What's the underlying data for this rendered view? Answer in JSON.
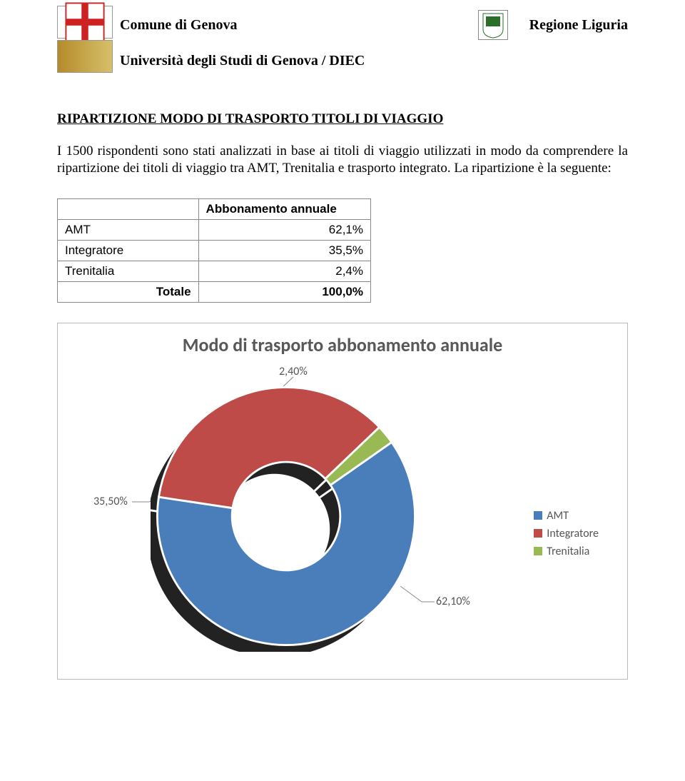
{
  "header": {
    "comune": "Comune di Genova",
    "regione": "Regione Liguria",
    "univ": "Università degli Studi di Genova / DIEC"
  },
  "section_title": "RIPARTIZIONE MODO DI TRASPORTO TITOLI DI VIAGGIO",
  "paragraph": "I 1500 rispondenti sono stati analizzati in base ai titoli di viaggio utilizzati in modo da comprendere la ripartizione dei titoli di viaggio tra AMT, Trenitalia e trasporto integrato. La ripartizione è la seguente:",
  "table": {
    "header": "Abbonamento annuale",
    "rows": [
      {
        "label": "AMT",
        "value": "62,1%"
      },
      {
        "label": "Integratore",
        "value": "35,5%"
      },
      {
        "label": "Trenitalia",
        "value": "2,4%"
      }
    ],
    "total_label": "Totale",
    "total_value": "100,0%"
  },
  "chart": {
    "type": "donut",
    "title": "Modo di trasporto abbonamento annuale",
    "series": [
      {
        "name": "AMT",
        "value": 62.1,
        "label": "62,10%",
        "color": "#4a7ebb"
      },
      {
        "name": "Integratore",
        "value": 35.5,
        "label": "35,50%",
        "color": "#be4b48"
      },
      {
        "name": "Trenitalia",
        "value": 2.4,
        "label": "2,40%",
        "color": "#98b954"
      }
    ],
    "inner_radius_ratio": 0.42,
    "label_fontsize": 16,
    "title_fontsize": 26,
    "title_color": "#585858",
    "label_color": "#555555",
    "background": "#ffffff",
    "border_color": "#bbbbbb",
    "leader_color": "#888888",
    "shadow_color": "#222222",
    "shadow_offset": {
      "dx": -16,
      "dy": 18
    },
    "legend_position": "right",
    "start_angle_deg": 55
  }
}
